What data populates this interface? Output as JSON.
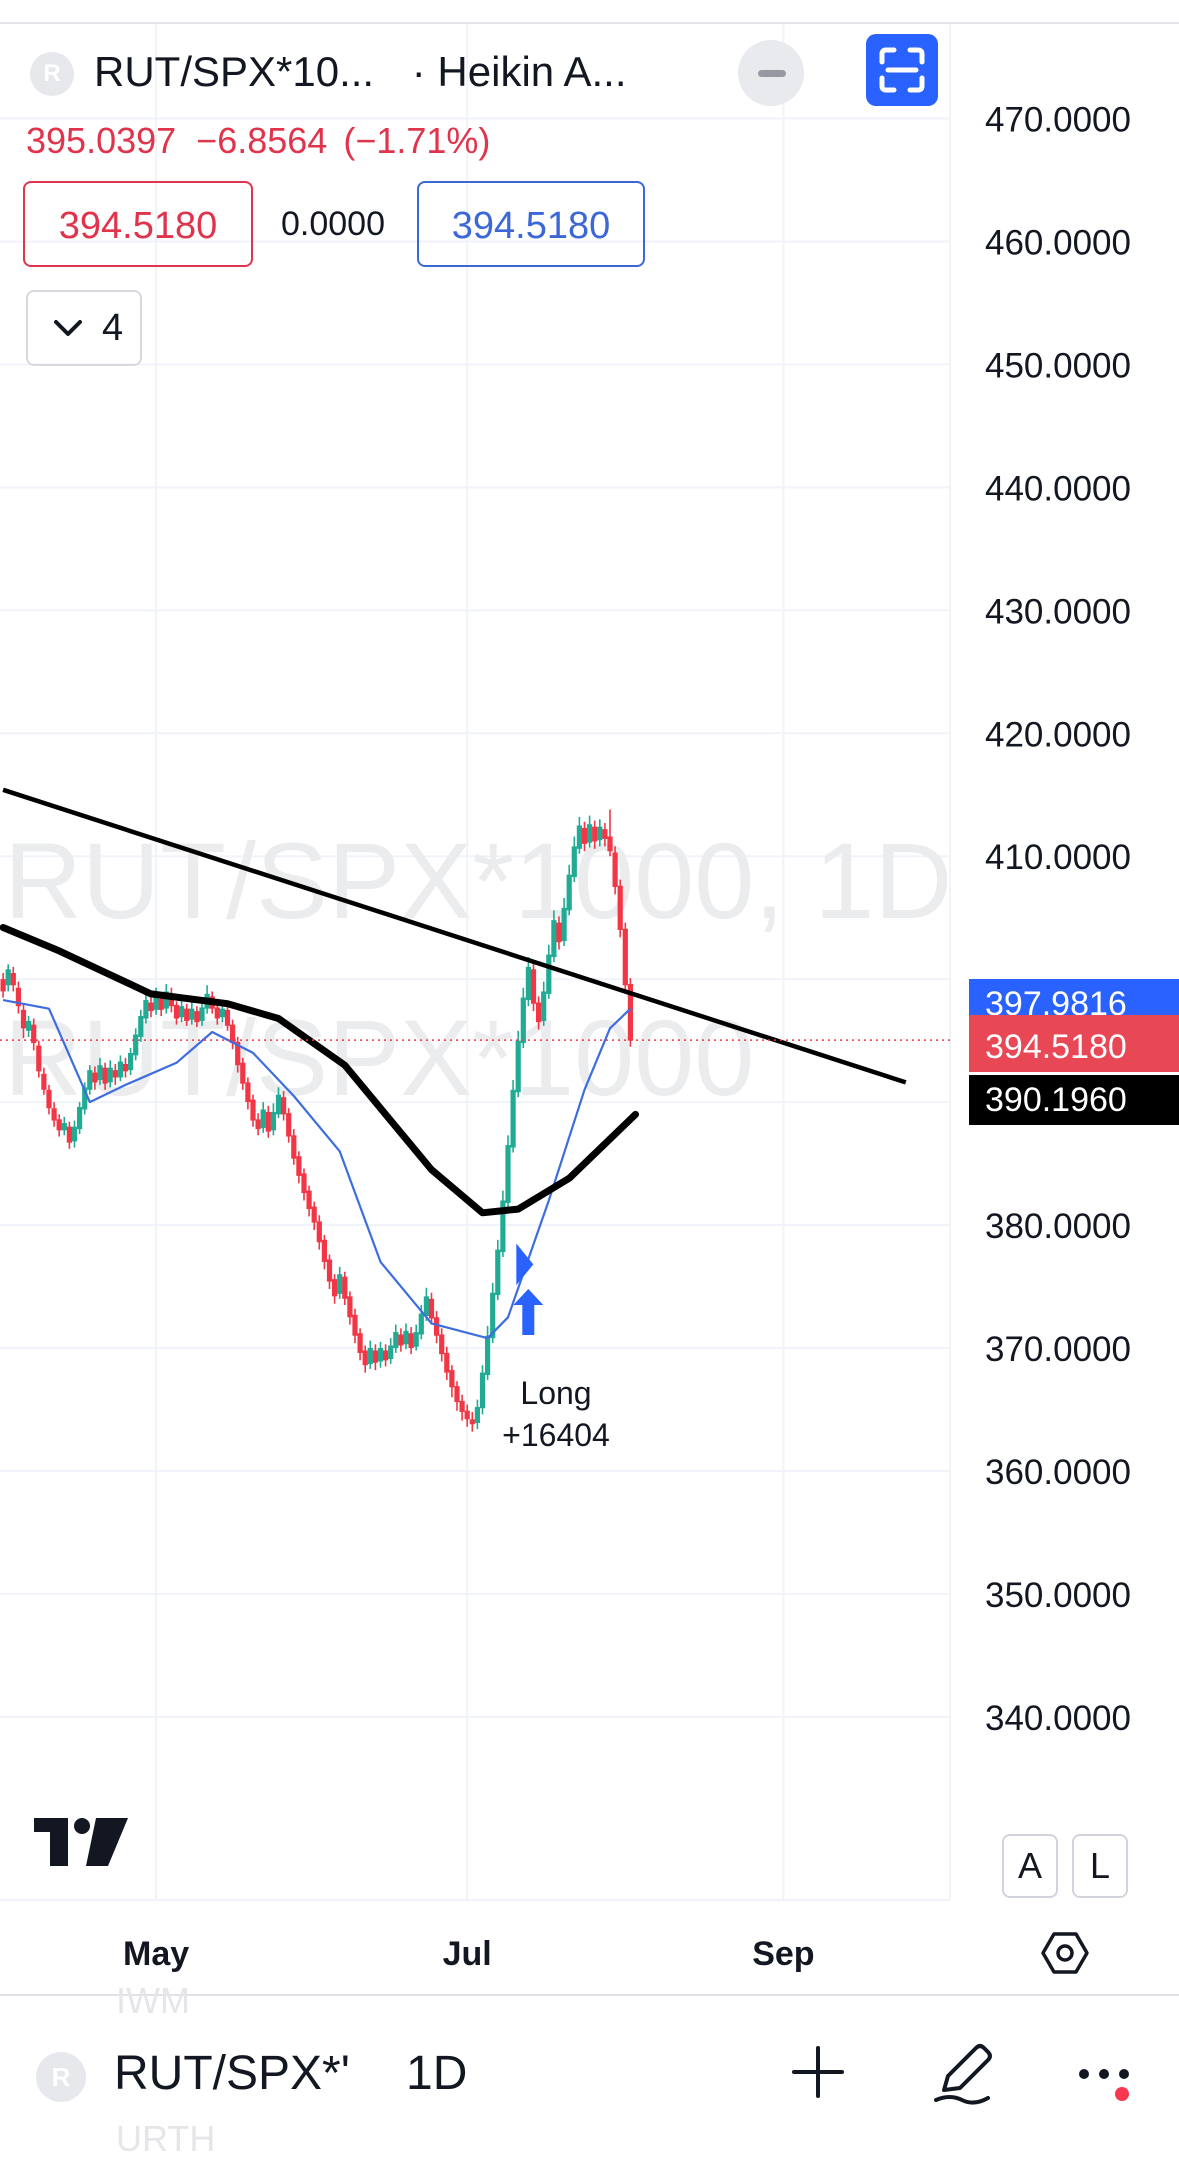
{
  "header": {
    "logo_letter": "R",
    "symbol": "RUT/SPX*10...",
    "chart_style": "· Heikin A...",
    "last_price": "395.0397",
    "change": "−6.8564",
    "change_pct": "(−1.71%)",
    "bid": "394.5180",
    "spread": "0.0000",
    "ask": "394.5180",
    "indicators_count": "4"
  },
  "chart_data": {
    "type": "candlestick",
    "watermark_line1": "RUT/SPX*1000, 1D",
    "watermark_line2": "RUT/SPX*1000",
    "y_ticks": [
      "470.0000",
      "460.0000",
      "450.0000",
      "440.0000",
      "430.0000",
      "420.0000",
      "410.0000",
      "380.0000",
      "370.0000",
      "360.0000",
      "350.0000",
      "340.0000"
    ],
    "y_tick_values": [
      470,
      460,
      450,
      440,
      430,
      420,
      410,
      380,
      370,
      360,
      350,
      340
    ],
    "ylim": [
      331,
      478
    ],
    "x_ticks": [
      "May",
      "Jul",
      "Sep"
    ],
    "x_tick_days": [
      31,
      92,
      154
    ],
    "xlim": [
      1,
      178
    ],
    "price_labels": [
      {
        "text": "397.9816",
        "value": 397.9816,
        "color": "#2962ff"
      },
      {
        "text": "395.0397",
        "value": 395.0397,
        "color": "#e84855"
      },
      {
        "text": "394.5180",
        "value": 394.518,
        "color": "#e84855"
      },
      {
        "text": "390.1960",
        "value": 390.196,
        "color": "#000000"
      }
    ],
    "current_price_line": 395.0397,
    "trendline": [
      [
        1,
        415.4
      ],
      [
        178,
        391.6
      ]
    ],
    "ma_long": [
      [
        1,
        404.2
      ],
      [
        12,
        402.3
      ],
      [
        30,
        398.8
      ],
      [
        45,
        398.0
      ],
      [
        55,
        396.8
      ],
      [
        68,
        393.0
      ],
      [
        85,
        384.5
      ],
      [
        95,
        381.0
      ],
      [
        102,
        381.3
      ],
      [
        112,
        383.8
      ],
      [
        125,
        389.0
      ]
    ],
    "ma_short": [
      [
        1,
        398.3
      ],
      [
        10,
        397.6
      ],
      [
        18,
        390.0
      ],
      [
        25,
        391.4
      ],
      [
        35,
        393.2
      ],
      [
        42,
        395.7
      ],
      [
        50,
        394.0
      ],
      [
        58,
        390.5
      ],
      [
        67,
        386.0
      ],
      [
        75,
        377.0
      ],
      [
        85,
        372.0
      ],
      [
        96,
        370.8
      ],
      [
        100,
        372.5
      ],
      [
        108,
        382.0
      ],
      [
        115,
        391.0
      ],
      [
        120,
        396.0
      ],
      [
        124,
        397.6
      ]
    ],
    "trade_marker": {
      "label": "Long",
      "profit": "+16404",
      "entry_day": 103
    },
    "candles": [
      [
        1,
        400.0,
        399.0,
        400.5,
        398.5
      ],
      [
        2,
        399.5,
        400.8,
        401.2,
        399.0
      ],
      [
        3,
        400.5,
        399.5,
        401.0,
        399.0
      ],
      [
        4,
        399.3,
        397.8,
        399.8,
        397.2
      ],
      [
        5,
        397.5,
        396.0,
        398.0,
        395.2
      ],
      [
        6,
        395.8,
        396.6,
        397.0,
        395.3
      ],
      [
        7,
        396.3,
        394.8,
        396.8,
        394.2
      ],
      [
        8,
        394.6,
        392.5,
        395.0,
        392.0
      ],
      [
        9,
        392.3,
        391.0,
        392.8,
        390.6
      ],
      [
        10,
        391.0,
        389.5,
        391.4,
        389.0
      ],
      [
        11,
        389.5,
        388.5,
        390.0,
        388.0
      ],
      [
        12,
        388.6,
        387.7,
        389.0,
        387.2
      ],
      [
        13,
        387.7,
        388.3,
        388.8,
        387.3
      ],
      [
        14,
        388.0,
        386.7,
        388.4,
        386.2
      ],
      [
        15,
        386.8,
        388.0,
        388.5,
        386.3
      ],
      [
        16,
        387.8,
        389.6,
        390.0,
        387.4
      ],
      [
        17,
        389.4,
        391.2,
        391.6,
        389.0
      ],
      [
        18,
        391.0,
        392.6,
        393.0,
        390.6
      ],
      [
        19,
        392.4,
        391.6,
        392.9,
        391.0
      ],
      [
        20,
        391.8,
        393.0,
        393.6,
        391.4
      ],
      [
        21,
        392.8,
        391.5,
        393.2,
        391.0
      ],
      [
        22,
        391.6,
        392.8,
        393.4,
        391.2
      ],
      [
        23,
        392.6,
        392.0,
        393.1,
        391.4
      ],
      [
        24,
        392.0,
        393.3,
        393.8,
        391.7
      ],
      [
        25,
        393.1,
        392.5,
        393.6,
        392.0
      ],
      [
        26,
        392.6,
        394.0,
        394.4,
        392.2
      ],
      [
        27,
        393.8,
        395.5,
        396.0,
        393.4
      ],
      [
        28,
        395.3,
        397.0,
        397.5,
        394.9
      ],
      [
        29,
        396.8,
        398.3,
        398.8,
        396.4
      ],
      [
        30,
        398.1,
        397.4,
        398.7,
        396.9
      ],
      [
        31,
        397.5,
        398.6,
        399.3,
        397.1
      ],
      [
        32,
        398.4,
        397.5,
        398.9,
        397.0
      ],
      [
        33,
        397.6,
        399.0,
        399.6,
        397.2
      ],
      [
        34,
        398.8,
        397.8,
        399.3,
        397.3
      ],
      [
        35,
        397.9,
        396.8,
        398.2,
        396.3
      ],
      [
        36,
        396.9,
        397.8,
        398.4,
        396.5
      ],
      [
        37,
        397.6,
        396.6,
        398.0,
        396.2
      ],
      [
        38,
        396.7,
        397.6,
        398.3,
        396.3
      ],
      [
        39,
        397.4,
        396.5,
        397.8,
        396.1
      ],
      [
        40,
        396.6,
        397.7,
        398.3,
        396.2
      ],
      [
        41,
        397.6,
        398.8,
        399.5,
        397.2
      ],
      [
        42,
        398.6,
        397.6,
        399.0,
        397.2
      ],
      [
        43,
        397.7,
        396.8,
        398.1,
        396.3
      ],
      [
        44,
        396.9,
        397.6,
        398.2,
        396.5
      ],
      [
        45,
        397.5,
        396.2,
        397.9,
        395.8
      ],
      [
        46,
        396.3,
        394.8,
        396.7,
        394.3
      ],
      [
        47,
        394.9,
        393.0,
        395.3,
        392.4
      ],
      [
        48,
        393.2,
        391.5,
        393.6,
        391.0
      ],
      [
        49,
        391.6,
        390.0,
        392.0,
        389.4
      ],
      [
        50,
        390.2,
        388.5,
        390.6,
        388.0
      ],
      [
        51,
        388.6,
        387.8,
        389.1,
        387.3
      ],
      [
        52,
        387.9,
        389.4,
        390.0,
        387.5
      ],
      [
        53,
        389.2,
        387.6,
        389.7,
        387.1
      ],
      [
        54,
        387.7,
        389.2,
        389.9,
        387.3
      ],
      [
        55,
        389.0,
        390.6,
        391.2,
        388.7
      ],
      [
        56,
        390.4,
        389.0,
        390.9,
        388.5
      ],
      [
        57,
        389.1,
        387.2,
        389.5,
        386.7
      ],
      [
        58,
        387.3,
        385.4,
        387.8,
        384.9
      ],
      [
        59,
        385.6,
        384.0,
        386.0,
        383.4
      ],
      [
        60,
        384.2,
        382.6,
        384.6,
        382.0
      ],
      [
        61,
        382.8,
        381.3,
        383.2,
        380.7
      ],
      [
        62,
        381.5,
        380.2,
        381.9,
        379.6
      ],
      [
        63,
        380.3,
        378.6,
        380.8,
        378.0
      ],
      [
        64,
        378.8,
        377.0,
        379.2,
        376.4
      ],
      [
        65,
        377.2,
        375.4,
        377.6,
        374.8
      ],
      [
        66,
        375.6,
        374.2,
        376.0,
        373.6
      ],
      [
        67,
        374.4,
        376.0,
        376.6,
        374.0
      ],
      [
        68,
        375.8,
        374.0,
        376.2,
        373.5
      ],
      [
        69,
        374.2,
        372.5,
        374.6,
        371.9
      ],
      [
        70,
        372.7,
        371.0,
        373.2,
        370.4
      ],
      [
        71,
        371.2,
        369.6,
        371.6,
        369.0
      ],
      [
        72,
        369.8,
        368.6,
        370.2,
        368.0
      ],
      [
        73,
        368.7,
        370.0,
        370.6,
        368.3
      ],
      [
        74,
        369.8,
        368.8,
        370.3,
        368.2
      ],
      [
        75,
        368.9,
        370.0,
        370.5,
        368.4
      ],
      [
        76,
        369.8,
        369.0,
        370.3,
        368.5
      ],
      [
        77,
        369.1,
        370.2,
        370.8,
        368.7
      ],
      [
        78,
        370.0,
        371.3,
        371.9,
        369.6
      ],
      [
        79,
        371.1,
        370.2,
        371.6,
        369.7
      ],
      [
        80,
        370.3,
        371.4,
        372.0,
        369.9
      ],
      [
        81,
        371.2,
        370.0,
        371.7,
        369.5
      ],
      [
        82,
        370.1,
        371.3,
        371.9,
        369.8
      ],
      [
        83,
        371.1,
        372.8,
        373.5,
        370.7
      ],
      [
        84,
        372.6,
        374.2,
        374.9,
        372.2
      ],
      [
        85,
        374.0,
        372.4,
        374.5,
        371.9
      ],
      [
        86,
        372.5,
        371.0,
        373.0,
        370.4
      ],
      [
        87,
        371.1,
        369.5,
        371.6,
        368.9
      ],
      [
        88,
        369.6,
        368.0,
        370.1,
        367.4
      ],
      [
        89,
        368.2,
        366.8,
        368.6,
        366.0
      ],
      [
        90,
        366.9,
        365.6,
        367.3,
        364.9
      ],
      [
        91,
        365.7,
        364.8,
        366.2,
        364.1
      ],
      [
        92,
        364.9,
        364.2,
        365.4,
        363.6
      ],
      [
        93,
        364.2,
        363.8,
        364.8,
        363.2
      ],
      [
        94,
        363.9,
        365.2,
        365.8,
        363.4
      ],
      [
        95,
        365.1,
        368.0,
        368.6,
        364.6
      ],
      [
        96,
        367.8,
        371.0,
        371.8,
        367.4
      ],
      [
        97,
        370.8,
        374.5,
        375.3,
        370.4
      ],
      [
        98,
        374.3,
        378.0,
        378.8,
        373.9
      ],
      [
        99,
        377.8,
        382.0,
        382.8,
        377.4
      ],
      [
        100,
        381.8,
        386.5,
        387.3,
        381.4
      ],
      [
        101,
        386.3,
        391.0,
        391.8,
        385.9
      ],
      [
        102,
        390.8,
        395.0,
        395.8,
        390.4
      ],
      [
        103,
        394.8,
        398.5,
        399.3,
        394.4
      ],
      [
        104,
        398.3,
        401.0,
        401.8,
        397.8
      ],
      [
        105,
        400.8,
        398.0,
        401.3,
        397.4
      ],
      [
        106,
        398.1,
        396.5,
        398.6,
        395.9
      ],
      [
        107,
        396.6,
        399.0,
        399.8,
        396.2
      ],
      [
        108,
        398.8,
        402.0,
        402.8,
        398.4
      ],
      [
        109,
        401.8,
        404.8,
        405.6,
        401.4
      ],
      [
        110,
        404.6,
        403.0,
        405.1,
        402.4
      ],
      [
        111,
        403.1,
        405.8,
        406.6,
        402.7
      ],
      [
        112,
        405.6,
        408.5,
        409.3,
        405.2
      ],
      [
        113,
        408.3,
        410.8,
        411.6,
        407.9
      ],
      [
        114,
        410.6,
        412.5,
        413.2,
        410.2
      ],
      [
        115,
        412.3,
        411.0,
        412.8,
        410.4
      ],
      [
        116,
        411.1,
        412.6,
        413.3,
        410.7
      ],
      [
        117,
        412.4,
        411.2,
        412.9,
        410.6
      ],
      [
        118,
        411.3,
        412.4,
        413.0,
        410.8
      ],
      [
        119,
        412.2,
        411.4,
        412.7,
        410.8
      ],
      [
        120,
        411.6,
        410.4,
        413.8,
        410.0
      ],
      [
        121,
        410.3,
        407.5,
        410.8,
        406.9
      ],
      [
        122,
        407.6,
        404.0,
        408.1,
        403.4
      ],
      [
        123,
        404.1,
        399.5,
        404.6,
        398.9
      ],
      [
        124,
        399.6,
        395.0,
        400.1,
        394.5
      ]
    ]
  },
  "toolbar": {
    "scale_auto": "A",
    "scale_log": "L"
  },
  "bottom_bar": {
    "logo_letter": "R",
    "symbol": "RUT/SPX*'",
    "interval": "1D",
    "ghost_top": "IWM",
    "ghost_bottom": "URTH"
  }
}
